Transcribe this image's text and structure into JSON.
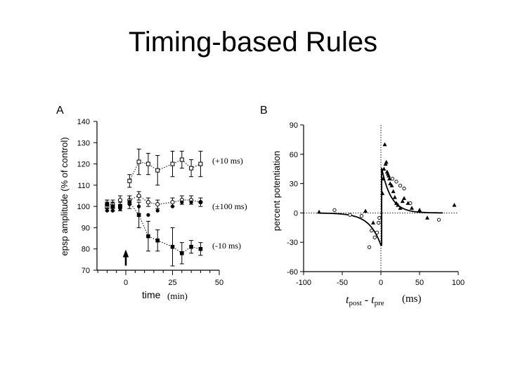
{
  "slide": {
    "title": "Timing-based Rules"
  },
  "chart_data": [
    {
      "panel": "A",
      "type": "line",
      "title": "",
      "xlabel": "time",
      "xunit": "(min)",
      "ylabel": "epsp amplitude (% of control)",
      "xlim": [
        -15,
        50
      ],
      "ylim": [
        70,
        140
      ],
      "xticks": [
        0,
        25,
        50
      ],
      "yticks": [
        70,
        80,
        90,
        100,
        110,
        120,
        130,
        140
      ],
      "marker_x": 0,
      "series": [
        {
          "name": "(+10 ms)",
          "marker": "open-square",
          "points": [
            [
              -10,
              100
            ],
            [
              -7,
              100
            ],
            [
              -3,
              100
            ],
            [
              2,
              112
            ],
            [
              7,
              121
            ],
            [
              12,
              120
            ],
            [
              17,
              117
            ],
            [
              25,
              120
            ],
            [
              30,
              122
            ],
            [
              35,
              118
            ],
            [
              40,
              120
            ]
          ],
          "errors": [
            2,
            2,
            2,
            3,
            6,
            5,
            7,
            6,
            4,
            4,
            6
          ]
        },
        {
          "name": "(±100 ms)",
          "marker": "open-circle",
          "points": [
            [
              -10,
              101
            ],
            [
              -7,
              101
            ],
            [
              -3,
              103
            ],
            [
              2,
              103
            ],
            [
              7,
              105
            ],
            [
              12,
              102
            ],
            [
              17,
              101
            ],
            [
              25,
              102
            ],
            [
              30,
              103
            ],
            [
              35,
              103
            ],
            [
              40,
              102
            ]
          ],
          "errors": [
            2,
            2,
            2,
            2,
            2,
            2,
            2,
            2,
            2,
            2,
            2
          ]
        },
        {
          "name": "(-10 ms)",
          "marker": "filled-circle-square",
          "points": [
            [
              -10,
              101
            ],
            [
              -7,
              100
            ],
            [
              -3,
              100
            ],
            [
              2,
              102
            ],
            [
              7,
              96
            ],
            [
              12,
              86
            ],
            [
              17,
              84
            ],
            [
              25,
              81
            ],
            [
              30,
              78
            ],
            [
              35,
              81
            ],
            [
              40,
              80
            ]
          ],
          "errors": [
            2,
            2,
            2,
            3,
            6,
            7,
            5,
            9,
            5,
            3,
            3
          ]
        }
      ],
      "extra_points": [
        [
          -10,
          98
        ],
        [
          -7,
          98
        ],
        [
          -3,
          99
        ],
        [
          2,
          101
        ],
        [
          7,
          100
        ],
        [
          12,
          96
        ],
        [
          17,
          98
        ],
        [
          25,
          100
        ],
        [
          30,
          102
        ],
        [
          35,
          102
        ],
        [
          40,
          102
        ]
      ]
    },
    {
      "panel": "B",
      "type": "scatter",
      "title": "",
      "xlabel_main": "t",
      "xlabel_sub1": "post",
      "xlabel_mid": " - t",
      "xlabel_sub2": "pre",
      "xunit": "(ms)",
      "ylabel": "percent potentiation",
      "xlim": [
        -100,
        100
      ],
      "ylim": [
        -60,
        90
      ],
      "xticks": [
        -100,
        -50,
        0,
        50,
        100
      ],
      "yticks": [
        -60,
        -30,
        0,
        30,
        60,
        90
      ],
      "filled_triangles": [
        [
          -80,
          1
        ],
        [
          -20,
          2
        ],
        [
          -10,
          -10
        ],
        [
          2,
          20
        ],
        [
          3,
          35
        ],
        [
          4,
          45
        ],
        [
          5,
          70
        ],
        [
          6,
          50
        ],
        [
          7,
          52
        ],
        [
          8,
          42
        ],
        [
          9,
          40
        ],
        [
          10,
          38
        ],
        [
          11,
          35
        ],
        [
          12,
          30
        ],
        [
          14,
          28
        ],
        [
          16,
          22
        ],
        [
          18,
          16
        ],
        [
          20,
          10
        ],
        [
          22,
          8
        ],
        [
          25,
          5
        ],
        [
          28,
          12
        ],
        [
          30,
          15
        ],
        [
          35,
          10
        ],
        [
          40,
          5
        ],
        [
          50,
          3
        ],
        [
          60,
          -5
        ],
        [
          95,
          8
        ]
      ],
      "open_circles": [
        [
          -60,
          3
        ],
        [
          -40,
          -2
        ],
        [
          -25,
          -3
        ],
        [
          -15,
          -35
        ],
        [
          -12,
          -18
        ],
        [
          -8,
          -25
        ],
        [
          -5,
          -20
        ],
        [
          -3,
          -10
        ],
        [
          15,
          35
        ],
        [
          20,
          32
        ],
        [
          25,
          28
        ],
        [
          30,
          25
        ],
        [
          38,
          10
        ],
        [
          75,
          -7
        ],
        [
          -2,
          -5
        ]
      ],
      "fit_curve": {
        "type": "exponential",
        "a_plus": 50,
        "tau_plus": 12,
        "a_minus": -33,
        "tau_minus": 15
      }
    }
  ]
}
